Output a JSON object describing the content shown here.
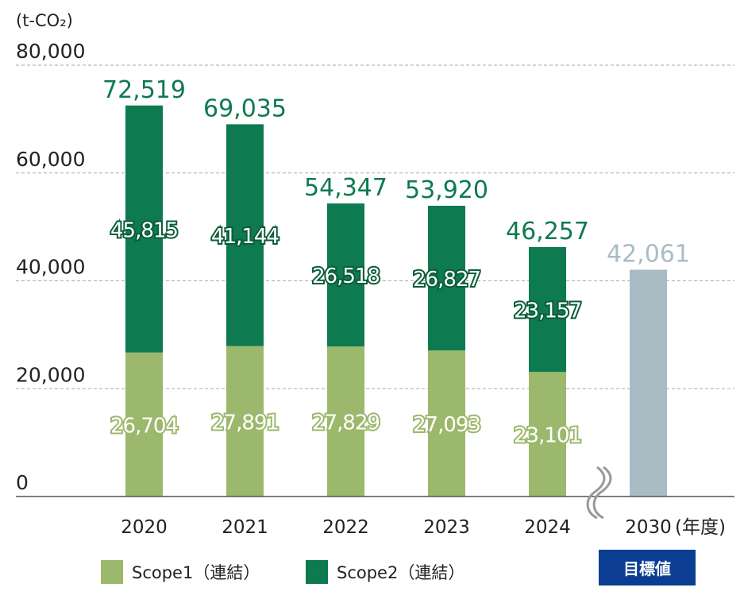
{
  "chart_data": {
    "type": "bar",
    "stacked": true,
    "unit_label": "(t-CO₂)",
    "xlabel_suffix": "(年度)",
    "categories": [
      "2020",
      "2021",
      "2022",
      "2023",
      "2024",
      "2030"
    ],
    "series": [
      {
        "name": "Scope1（連結）",
        "color": "#9cb86c",
        "values": [
          26704,
          27891,
          27829,
          27093,
          23101,
          null
        ]
      },
      {
        "name": "Scope2（連結）",
        "color": "#0e7a50",
        "values": [
          45815,
          41144,
          26518,
          26827,
          23157,
          null
        ]
      }
    ],
    "totals": [
      72519,
      69035,
      54347,
      53920,
      46257
    ],
    "target": {
      "category": "2030",
      "value": 42061,
      "color": "#a9bcc4",
      "label": "42,061",
      "badge": "目標値",
      "badge_color": "#0b3e92"
    },
    "total_labels": [
      "72,519",
      "69,035",
      "54,347",
      "53,920",
      "46,257"
    ],
    "scope1_labels": [
      "26,704",
      "27,891",
      "27,829",
      "27,093",
      "23,101"
    ],
    "scope2_labels": [
      "45,815",
      "41,144",
      "26,518",
      "26,827",
      "23,157"
    ],
    "yticks": [
      "0",
      "20,000",
      "40,000",
      "60,000",
      "80,000"
    ],
    "ytick_values": [
      0,
      20000,
      40000,
      60000,
      80000
    ],
    "ylim": [
      0,
      80000
    ],
    "grid": true,
    "axis_break": "between 2024 and 2030",
    "legend_position": "bottom-left"
  }
}
